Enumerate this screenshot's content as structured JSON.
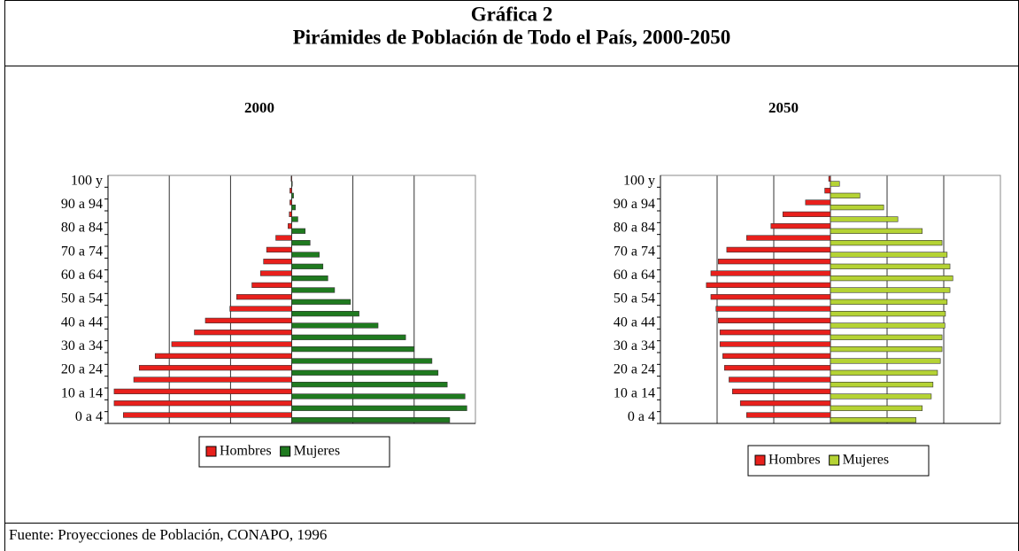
{
  "header": {
    "title": "Gráfica 2",
    "subtitle": "Pirámides de Población de Todo el País, 2000-2050"
  },
  "footer": "Fuente: Proyecciones de Población, CONAPO, 1996",
  "chart_data": [
    {
      "type": "pyramid",
      "title": "2000",
      "categories": [
        "0 a 4",
        null,
        "10 a 14",
        null,
        "20 a 24",
        null,
        "30 a 34",
        null,
        "40 a 44",
        null,
        "50 a 54",
        null,
        "60 a 64",
        null,
        "70 a 74",
        null,
        "80 a 84",
        null,
        "90 a 94",
        null,
        "100 y"
      ],
      "series": [
        {
          "name": "Hombres",
          "color": "#e8201c",
          "values": [
            2.75,
            2.9,
            2.9,
            2.58,
            2.49,
            2.23,
            1.96,
            1.59,
            1.41,
            1.01,
            0.9,
            0.65,
            0.51,
            0.46,
            0.41,
            0.26,
            0.06,
            0.04,
            0.03,
            0.03,
            0.01
          ]
        },
        {
          "name": "Mujeres",
          "color": "#1f7a1f",
          "values": [
            2.58,
            2.86,
            2.83,
            2.54,
            2.39,
            2.29,
            2.0,
            1.86,
            1.41,
            1.1,
            0.96,
            0.7,
            0.59,
            0.51,
            0.45,
            0.3,
            0.22,
            0.1,
            0.06,
            0.03,
            0.01
          ]
        }
      ],
      "xlim": [
        -3,
        3
      ],
      "xticks": [
        -3,
        -2,
        -1,
        0,
        1,
        2,
        3
      ],
      "grid": true
    },
    {
      "type": "pyramid",
      "title": "2050",
      "categories": [
        "0 a 4",
        null,
        "10 a 14",
        null,
        "20 a 24",
        null,
        "30 a 34",
        null,
        "40 a 44",
        null,
        "50 a 54",
        null,
        "60 a 64",
        null,
        "70 a 74",
        null,
        "80 a 84",
        null,
        "90 a 94",
        null,
        "100 y"
      ],
      "series": [
        {
          "name": "Hombres",
          "color": "#e8201c",
          "values": [
            1.48,
            1.59,
            1.73,
            1.79,
            1.87,
            1.9,
            1.95,
            1.95,
            1.98,
            2.02,
            2.11,
            2.19,
            2.11,
            1.98,
            1.83,
            1.48,
            1.05,
            0.84,
            0.44,
            0.1,
            0.03
          ]
        },
        {
          "name": "Mujeres",
          "color": "#b5d334",
          "values": [
            1.51,
            1.62,
            1.78,
            1.81,
            1.89,
            1.94,
            1.97,
            1.97,
            2.02,
            2.03,
            2.06,
            2.11,
            2.16,
            2.11,
            2.06,
            1.97,
            1.62,
            1.19,
            0.94,
            0.52,
            0.16
          ]
        }
      ],
      "xlim": [
        -3,
        3
      ],
      "xticks": [
        -3,
        -2,
        -1,
        0,
        1,
        2,
        3
      ],
      "grid": true
    }
  ]
}
